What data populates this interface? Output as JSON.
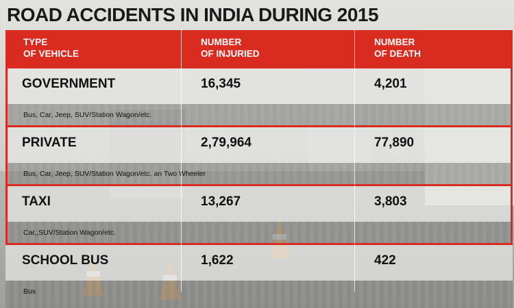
{
  "title": "ROAD ACCIDENTS IN INDIA DURING 2015",
  "chart_data": {
    "type": "table",
    "title": "ROAD ACCIDENTS IN INDIA DURING 2015",
    "columns": [
      "TYPE\nOF VEHICLE",
      "NUMBER\nOF INJURIED",
      "NUMBER\nOF DEATH"
    ],
    "rows": [
      {
        "type": "GOVERNMENT",
        "injured": "16,345",
        "deaths": "4,201",
        "note": "Bus, Car, Jeep, SUV/Station Wagon/etc."
      },
      {
        "type": "PRIVATE",
        "injured": "2,79,964",
        "deaths": "77,890",
        "note": "Bus, Car, Jeep, SUV/Station Wagon/etc. an Two Wheeler"
      },
      {
        "type": "TAXI",
        "injured": "13,267",
        "deaths": "3,803",
        "note": "Car,,SUV/Station Wagon/etc."
      },
      {
        "type": "SCHOOL BUS",
        "injured": "1,622",
        "deaths": "422",
        "note": "Bus"
      }
    ]
  },
  "colors": {
    "accent": "#d92b1f",
    "header_text": "#ffffff",
    "body_text": "#111111"
  }
}
